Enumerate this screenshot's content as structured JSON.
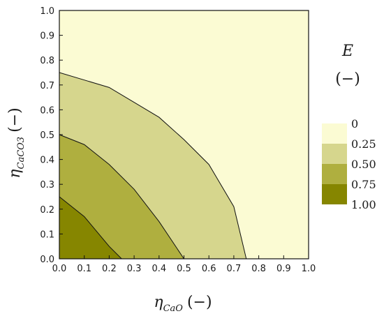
{
  "chart_data": {
    "type": "contour",
    "xlabel": {
      "symbol": "η",
      "subscript": "CaO",
      "unit": "(−)"
    },
    "ylabel": {
      "symbol": "η",
      "subscript": "CaCO3",
      "unit": "(−)"
    },
    "xlim": [
      0.0,
      1.0
    ],
    "ylim": [
      0.0,
      1.0
    ],
    "xticks": [
      "0.0",
      "0.1",
      "0.2",
      "0.3",
      "0.4",
      "0.5",
      "0.6",
      "0.7",
      "0.8",
      "0.9",
      "1.0"
    ],
    "yticks": [
      "0.0",
      "0.1",
      "0.2",
      "0.3",
      "0.4",
      "0.5",
      "0.6",
      "0.7",
      "0.8",
      "0.9",
      "1.0"
    ],
    "grid": false,
    "legend": {
      "title": "E",
      "unit": "(−)",
      "placement": "right",
      "levels": [
        "0",
        "0.25",
        "0.50",
        "0.75",
        "1.00"
      ],
      "colors": [
        "#fbfbd3",
        "#d6d68d",
        "#afaf3f",
        "#868600"
      ]
    },
    "contour_lines": [
      {
        "level": "0.75",
        "points": [
          [
            0.0,
            0.25
          ],
          [
            0.1,
            0.17
          ],
          [
            0.2,
            0.05
          ],
          [
            0.25,
            0.0
          ]
        ]
      },
      {
        "level": "0.50",
        "points": [
          [
            0.0,
            0.5
          ],
          [
            0.1,
            0.46
          ],
          [
            0.2,
            0.38
          ],
          [
            0.3,
            0.28
          ],
          [
            0.4,
            0.15
          ],
          [
            0.5,
            0.0
          ]
        ]
      },
      {
        "level": "0.25",
        "points": [
          [
            0.0,
            0.75
          ],
          [
            0.1,
            0.72
          ],
          [
            0.2,
            0.69
          ],
          [
            0.3,
            0.63
          ],
          [
            0.4,
            0.57
          ],
          [
            0.5,
            0.48
          ],
          [
            0.6,
            0.38
          ],
          [
            0.7,
            0.21
          ],
          [
            0.75,
            0.0
          ]
        ]
      }
    ]
  }
}
